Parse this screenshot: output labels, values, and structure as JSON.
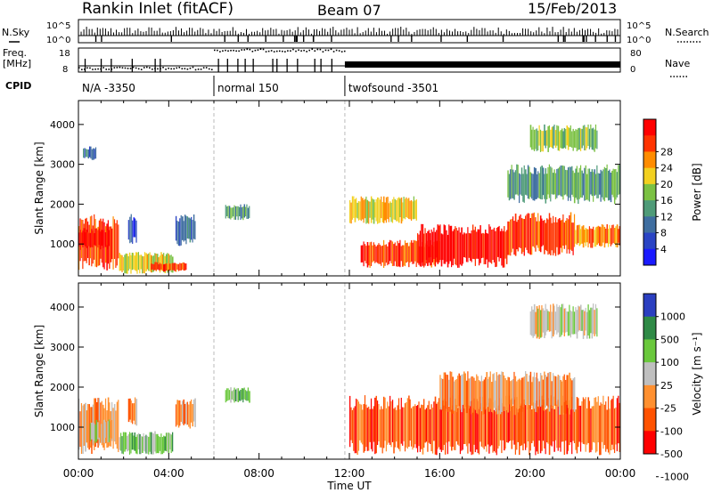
{
  "header": {
    "title": "Rankin Inlet (fitACF)",
    "beam": "Beam 07",
    "date": "15/Feb/2013"
  },
  "status": {
    "nsky_label": "N.Sky",
    "nsearch_label": "N.Search",
    "noise_ticks": [
      "10^5",
      "10^0"
    ],
    "freq_label": "Freq.",
    "freq_unit": "[MHz]",
    "freq_ticks": [
      "18",
      "8"
    ],
    "nave_label": "Nave",
    "nave_ticks": [
      "80",
      "0"
    ],
    "cpid_label": "CPID",
    "cpid_segments": [
      {
        "label": "N/A -3350",
        "start_h": 0,
        "end_h": 6
      },
      {
        "label": "normal 150",
        "start_h": 6,
        "end_h": 11.8
      },
      {
        "label": "twofsound -3501",
        "start_h": 11.8,
        "end_h": 24
      }
    ],
    "freq_mhz": [
      {
        "start_h": 0,
        "end_h": 6,
        "value": 9.8
      },
      {
        "start_h": 6,
        "end_h": 11.8,
        "value": 17.3
      },
      {
        "start_h": 11.8,
        "end_h": 24,
        "value": 11.0
      }
    ]
  },
  "colors": {
    "power_scale": [
      "#1a1aff",
      "#2a44c4",
      "#3f6ea0",
      "#4f9b78",
      "#7bc143",
      "#f2d020",
      "#ff8c00",
      "#ff3300",
      "#ff0000"
    ],
    "velocity_scale": [
      "#ff0000",
      "#ff5200",
      "#ff9030",
      "#bfbfbf",
      "#6ac83c",
      "#2f8a46",
      "#2b3fc0"
    ],
    "dashed_line": "#bbbbbb"
  },
  "chart_data": [
    {
      "type": "heatmap",
      "panel": "power",
      "ylabel": "Slant Range [km]",
      "yticks": [
        "1000",
        "2000",
        "3000",
        "4000"
      ],
      "ylim": [
        200,
        4600
      ],
      "xlim_h": [
        0,
        24
      ],
      "colorbar_label": "Power [dB]",
      "colorbar_ticks": [
        "4",
        "8",
        "12",
        "16",
        "20",
        "24",
        "28"
      ],
      "mode_changes_h": [
        6,
        11.8
      ],
      "regions": [
        {
          "t0": 0,
          "t1": 1.8,
          "r0": 300,
          "r1": 1750,
          "level": 8
        },
        {
          "t0": 0,
          "t1": 1.4,
          "r0": 850,
          "r1": 1400,
          "level": 9
        },
        {
          "t0": 0.2,
          "t1": 0.8,
          "r0": 3100,
          "r1": 3450,
          "level": 3
        },
        {
          "t0": 1.8,
          "t1": 4.2,
          "r0": 250,
          "r1": 800,
          "level": 6
        },
        {
          "t0": 3.2,
          "t1": 4.8,
          "r0": 300,
          "r1": 550,
          "level": 8
        },
        {
          "t0": 2.2,
          "t1": 2.6,
          "r0": 1000,
          "r1": 1750,
          "level": 2
        },
        {
          "t0": 4.3,
          "t1": 5.2,
          "r0": 950,
          "r1": 1750,
          "level": 3
        },
        {
          "t0": 6.5,
          "t1": 7.6,
          "r0": 1600,
          "r1": 2000,
          "level": 4
        },
        {
          "t0": 12,
          "t1": 15,
          "r0": 1500,
          "r1": 2200,
          "level": 6
        },
        {
          "t0": 12.5,
          "t1": 16,
          "r0": 400,
          "r1": 1100,
          "level": 8
        },
        {
          "t0": 15,
          "t1": 19,
          "r0": 400,
          "r1": 1500,
          "level": 9
        },
        {
          "t0": 19,
          "t1": 22,
          "r0": 700,
          "r1": 1800,
          "level": 8
        },
        {
          "t0": 22,
          "t1": 24,
          "r0": 900,
          "r1": 1500,
          "level": 7
        },
        {
          "t0": 19,
          "t1": 24,
          "r0": 2000,
          "r1": 3000,
          "level": 4
        },
        {
          "t0": 20,
          "t1": 23,
          "r0": 3300,
          "r1": 4000,
          "level": 5
        }
      ]
    },
    {
      "type": "heatmap",
      "panel": "velocity",
      "ylabel": "Slant Range [km]",
      "yticks": [
        "1000",
        "2000",
        "3000",
        "4000"
      ],
      "ylim": [
        200,
        4600
      ],
      "xlim_h": [
        0,
        24
      ],
      "xticks": [
        "00:00",
        "04:00",
        "08:00",
        "12:00",
        "16:00",
        "20:00",
        "00:00"
      ],
      "xlabel": "Time UT",
      "colorbar_label": "Velocity [m s⁻¹]",
      "colorbar_ticks": [
        "1000",
        "500",
        "100",
        "25",
        "-25",
        "-100",
        "-500",
        "-1000"
      ],
      "mode_changes_h": [
        6,
        11.8
      ],
      "regions": [
        {
          "t0": 0,
          "t1": 1.8,
          "r0": 300,
          "r1": 1750,
          "level": 3
        },
        {
          "t0": 0.5,
          "t1": 1.5,
          "r0": 600,
          "r1": 1200,
          "level": 4
        },
        {
          "t0": 1.8,
          "t1": 4.2,
          "r0": 300,
          "r1": 900,
          "level": 5
        },
        {
          "t0": 2.2,
          "t1": 2.6,
          "r0": 1000,
          "r1": 1750,
          "level": 3
        },
        {
          "t0": 4.3,
          "t1": 5.2,
          "r0": 950,
          "r1": 1750,
          "level": 3
        },
        {
          "t0": 6.5,
          "t1": 7.6,
          "r0": 1600,
          "r1": 2000,
          "level": 5
        },
        {
          "t0": 12,
          "t1": 24,
          "r0": 300,
          "r1": 1800,
          "level": 2
        },
        {
          "t0": 16,
          "t1": 22,
          "r0": 1300,
          "r1": 2400,
          "level": 3
        },
        {
          "t0": 20,
          "t1": 23,
          "r0": 3200,
          "r1": 4100,
          "level": 4
        }
      ]
    }
  ]
}
